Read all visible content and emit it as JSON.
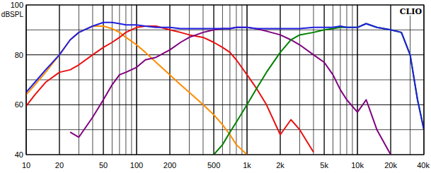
{
  "chart_data": {
    "type": "line",
    "ylabel": "dBSPL",
    "annotations": [
      "CLIO"
    ],
    "log": "x",
    "grid": true,
    "x": [
      10,
      12,
      15,
      20,
      25,
      30,
      40,
      50,
      60,
      70,
      80,
      100,
      120,
      150,
      200,
      250,
      300,
      400,
      500,
      600,
      700,
      800,
      1000,
      1200,
      1500,
      2000,
      2500,
      3000,
      4000,
      5000,
      6000,
      7000,
      8000,
      10000,
      12000,
      15000,
      20000,
      25000,
      30000,
      35000,
      40000
    ],
    "xlim": [
      10,
      40000
    ],
    "xticks": [
      10,
      20,
      50,
      100,
      200,
      500,
      {
        "value": 1000,
        "label": "1k"
      },
      {
        "value": 2000,
        "label": "2k"
      },
      {
        "value": 5000,
        "label": "5k"
      },
      {
        "value": 10000,
        "label": "10k"
      },
      {
        "value": 20000,
        "label": "20k"
      },
      {
        "value": 40000,
        "label": "40k"
      }
    ],
    "ylim": [
      40,
      100
    ],
    "yticks": [
      40,
      60,
      80,
      100
    ],
    "series": [
      {
        "color": "#ff8c00",
        "values": [
          64,
          68,
          73,
          80,
          86,
          89,
          91.5,
          91.5,
          90.5,
          89,
          87,
          84,
          81,
          77,
          72,
          68,
          65,
          60,
          56,
          52,
          48,
          44,
          40,
          null,
          null,
          null,
          null,
          null,
          null,
          null,
          null,
          null,
          null,
          null,
          null,
          null,
          null,
          null,
          null,
          null,
          null
        ]
      },
      {
        "color": "#e81010",
        "values": [
          59.5,
          64,
          69,
          73,
          74,
          76,
          80,
          83,
          85,
          87,
          89,
          91,
          91.5,
          91.5,
          90,
          89,
          88,
          87,
          85,
          83,
          81,
          78,
          72,
          67,
          60,
          48,
          54,
          50,
          41,
          null,
          null,
          null,
          null,
          null,
          null,
          null,
          null,
          null,
          null,
          null,
          null
        ]
      },
      {
        "color": "#800080",
        "values": [
          null,
          null,
          null,
          null,
          49,
          47,
          55,
          62,
          68,
          72,
          73,
          75,
          78,
          79,
          82,
          85,
          87,
          89,
          90,
          90.5,
          90.5,
          91,
          91,
          90.5,
          89.5,
          88,
          86,
          84,
          80,
          77,
          72,
          66,
          62,
          57,
          62,
          50,
          40,
          null,
          null,
          null,
          null
        ]
      },
      {
        "color": "#008000",
        "values": [
          null,
          null,
          null,
          null,
          null,
          null,
          null,
          null,
          null,
          null,
          null,
          null,
          null,
          null,
          null,
          null,
          null,
          null,
          40,
          44,
          49,
          53,
          60,
          66,
          73,
          81,
          86,
          88,
          89,
          90,
          90.5,
          91,
          91,
          91,
          92.5,
          91,
          90,
          89,
          80,
          62,
          50
        ]
      },
      {
        "color": "#2020e0",
        "values": [
          65,
          69,
          74,
          80,
          86,
          89,
          91.5,
          93,
          93,
          92.5,
          92,
          92,
          91.5,
          91,
          91,
          90.5,
          90.5,
          90.5,
          90.5,
          90.5,
          90.5,
          91,
          91,
          90.5,
          90.5,
          90.5,
          90.5,
          90.5,
          91,
          91,
          91,
          91.5,
          91,
          91,
          92.5,
          91,
          90,
          89,
          80,
          62,
          50
        ]
      }
    ]
  }
}
